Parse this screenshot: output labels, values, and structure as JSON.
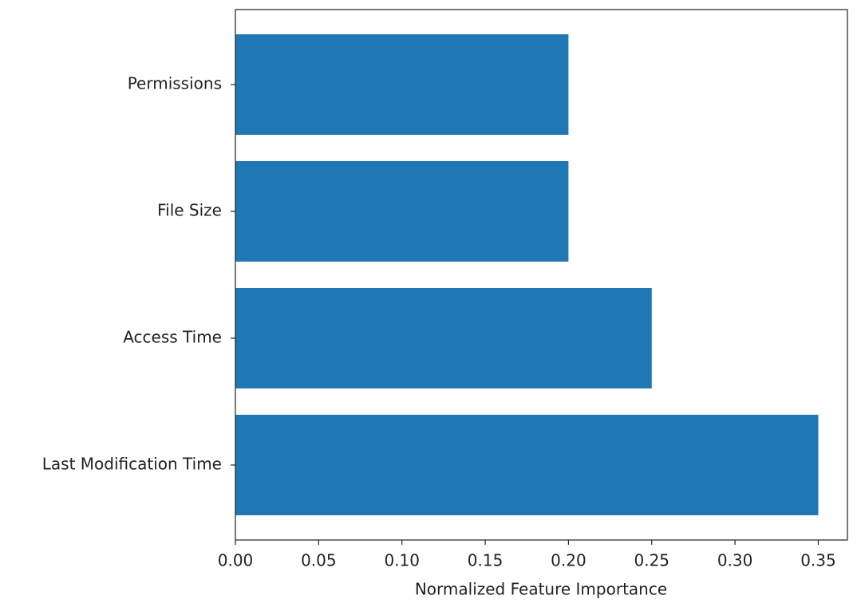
{
  "chart_data": {
    "type": "barh",
    "xlabel": "Normalized Feature Importance",
    "categories": [
      "Last Modification Time",
      "Access Time",
      "File Size",
      "Permissions"
    ],
    "values": [
      0.35,
      0.25,
      0.2,
      0.2
    ],
    "color": "#1f77b4",
    "xlim": [
      0,
      0.3675
    ],
    "xticks": [
      {
        "value": 0,
        "label": "0.00"
      },
      {
        "value": 0.05,
        "label": "0.05"
      },
      {
        "value": 0.1,
        "label": "0.10"
      },
      {
        "value": 0.15,
        "label": "0.15"
      },
      {
        "value": 0.2,
        "label": "0.20"
      },
      {
        "value": 0.25,
        "label": "0.25"
      },
      {
        "value": 0.3,
        "label": "0.30"
      },
      {
        "value": 0.35,
        "label": "0.35"
      }
    ],
    "grid": false
  }
}
